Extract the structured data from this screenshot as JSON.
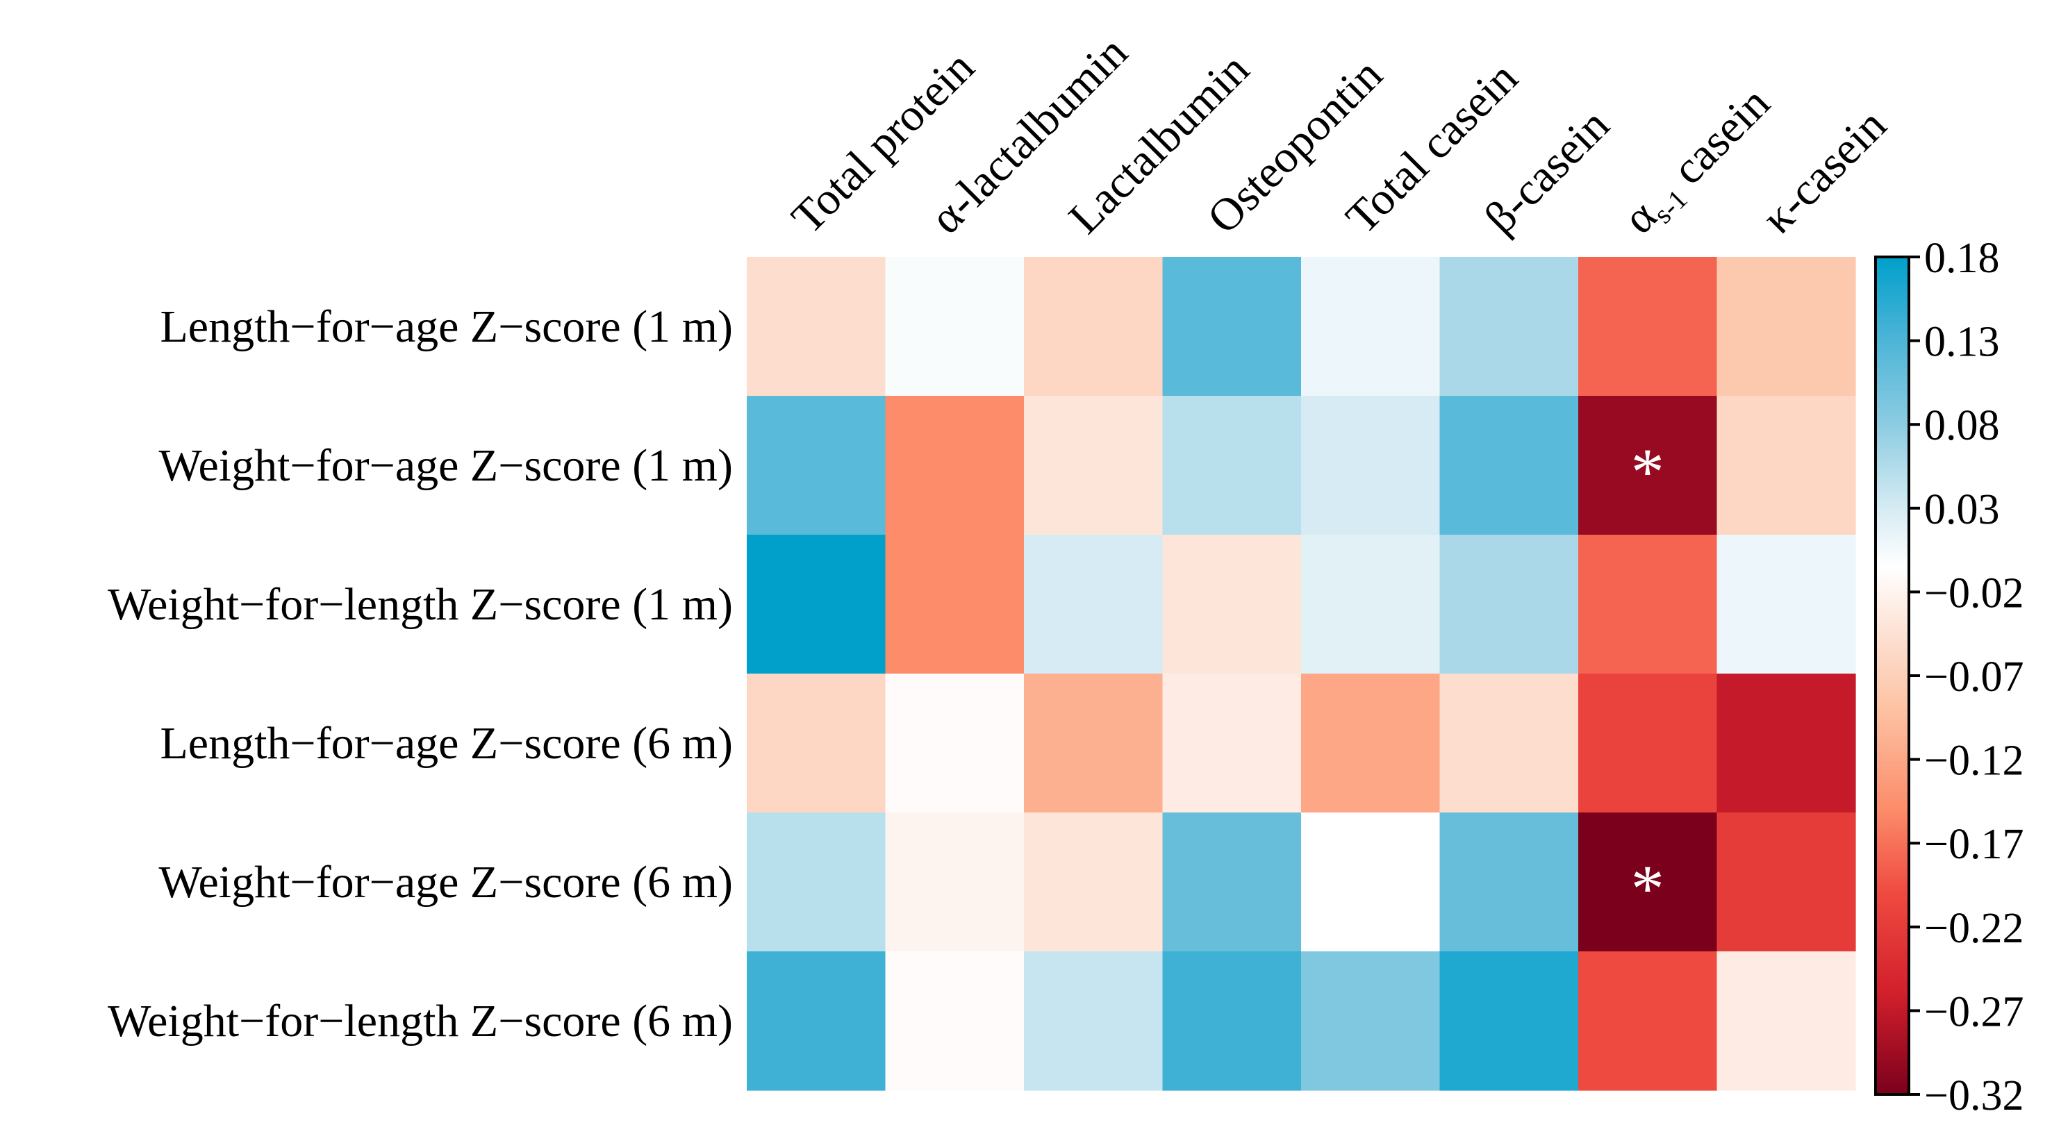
{
  "chart_data": {
    "type": "heatmap",
    "columns": [
      "Total protein",
      "α-lactalbumin",
      "Lactalbumin",
      "Osteopontin",
      "Total casein",
      "β-casein",
      "αs-1 casein",
      "κ-casein"
    ],
    "column_label_parts": [
      {
        "main": "Total protein"
      },
      {
        "main": "α-lactalbumin"
      },
      {
        "main": "Lactalbumin"
      },
      {
        "main": "Osteopontin"
      },
      {
        "main": "Total casein"
      },
      {
        "main": "β-casein"
      },
      {
        "main": "α",
        "sub": "s-1",
        "post": " casein"
      },
      {
        "main": "κ-casein"
      }
    ],
    "rows": [
      "Length−for−age Z−score (1 m)",
      "Weight−for−age Z−score (1 m)",
      "Weight−for−length Z−score (1 m)",
      "Length−for−age Z−score (6 m)",
      "Weight−for−age Z−score (6 m)",
      "Weight−for−length Z−score (6 m)"
    ],
    "values": [
      [
        -0.05,
        0.0,
        -0.06,
        0.12,
        0.01,
        0.06,
        -0.18,
        -0.08
      ],
      [
        0.12,
        -0.15,
        -0.04,
        0.05,
        0.03,
        0.12,
        -0.3,
        -0.06
      ],
      [
        0.18,
        -0.15,
        0.03,
        -0.04,
        0.02,
        0.06,
        -0.18,
        0.01
      ],
      [
        -0.06,
        -0.01,
        -0.11,
        -0.03,
        -0.12,
        -0.05,
        -0.21,
        -0.27
      ],
      [
        0.05,
        -0.02,
        -0.04,
        0.11,
        -0.005,
        0.11,
        -0.32,
        -0.22
      ],
      [
        0.14,
        -0.01,
        0.04,
        0.14,
        0.09,
        0.16,
        -0.2,
        -0.03
      ]
    ],
    "significant": [
      [
        1,
        6
      ],
      [
        4,
        6
      ]
    ],
    "significance_marker": "*",
    "colorbar": {
      "range": [
        -0.32,
        0.18
      ],
      "ticks": [
        0.18,
        0.13,
        0.08,
        0.03,
        -0.02,
        -0.07,
        -0.12,
        -0.17,
        -0.22,
        -0.27,
        -0.32
      ],
      "tick_labels": [
        "0.18",
        "0.13",
        "0.08",
        "0.03",
        "−0.02",
        "−0.07",
        "−0.12",
        "−0.17",
        "−0.22",
        "−0.27",
        "−0.32"
      ],
      "location": "right"
    },
    "color_stops": [
      {
        "value": 0.18,
        "color": "#00a0cb"
      },
      {
        "value": 0.13,
        "color": "#4eb5d7"
      },
      {
        "value": 0.08,
        "color": "#8ccce2"
      },
      {
        "value": 0.03,
        "color": "#d6ebf3"
      },
      {
        "value": -0.005,
        "color": "#ffffff"
      },
      {
        "value": -0.04,
        "color": "#fde5d9"
      },
      {
        "value": -0.09,
        "color": "#fdc2a3"
      },
      {
        "value": -0.15,
        "color": "#fc8c6a"
      },
      {
        "value": -0.2,
        "color": "#ef4a40"
      },
      {
        "value": -0.26,
        "color": "#d21f2c"
      },
      {
        "value": -0.32,
        "color": "#7b001c"
      }
    ],
    "title": "",
    "xlabel": "",
    "ylabel": ""
  }
}
